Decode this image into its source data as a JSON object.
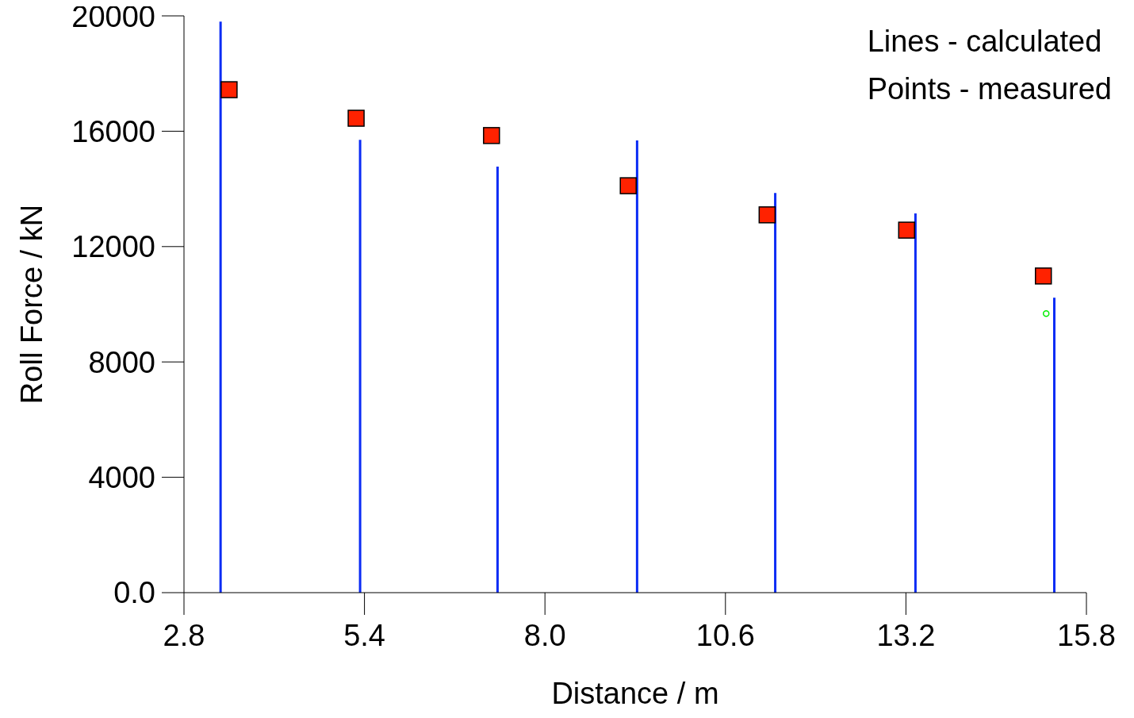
{
  "chart_data": {
    "type": "bar",
    "xlabel": "Distance / m",
    "ylabel": "Roll Force / kN",
    "annotations": [
      "Lines - calculated",
      "Points - measured"
    ],
    "series": [
      {
        "color": "#0b2cf5",
        "x": [
          3.33,
          5.34,
          7.32,
          9.33,
          11.32,
          13.34,
          15.34
        ],
        "values": [
          19800,
          15700,
          14770,
          15680,
          13860,
          13150,
          10230
        ]
      },
      {
        "type": "scatter",
        "marker": "square",
        "color": "#ff2200",
        "x": [
          3.45,
          5.28,
          7.23,
          9.2,
          11.2,
          13.21,
          15.18
        ],
        "values": [
          17440,
          16450,
          15850,
          14110,
          13100,
          12570,
          10980
        ]
      },
      {
        "type": "scatter",
        "marker": "circle",
        "color": "#00ee00",
        "x": [
          15.22
        ],
        "values": [
          9680
        ]
      }
    ],
    "xlim": [
      2.8,
      15.8
    ],
    "xticks": [
      2.8,
      5.4,
      {
        "value": 8,
        "label": "8.0"
      },
      10.6,
      13.2,
      15.8
    ],
    "ylim": [
      0,
      20000
    ],
    "yticks": [
      {
        "value": 0,
        "label": "0.0"
      },
      4000,
      8000,
      12000,
      16000,
      20000
    ],
    "grid": false
  }
}
